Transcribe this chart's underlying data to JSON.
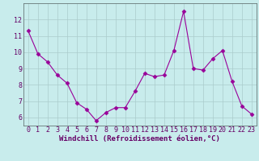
{
  "x": [
    0,
    1,
    2,
    3,
    4,
    5,
    6,
    7,
    8,
    9,
    10,
    11,
    12,
    13,
    14,
    15,
    16,
    17,
    18,
    19,
    20,
    21,
    22,
    23
  ],
  "y": [
    11.3,
    9.9,
    9.4,
    8.6,
    8.1,
    6.9,
    6.5,
    5.8,
    6.3,
    6.6,
    6.6,
    7.6,
    8.7,
    8.5,
    8.6,
    10.1,
    12.5,
    9.0,
    8.9,
    9.6,
    10.1,
    8.2,
    6.7,
    6.2
  ],
  "line_color": "#990099",
  "marker": "D",
  "markersize": 2.5,
  "linewidth": 0.8,
  "bg_color": "#c8ecec",
  "grid_color": "#aacccc",
  "xlabel": "Windchill (Refroidissement éolien,°C)",
  "xlabel_color": "#660066",
  "xlabel_fontsize": 6.5,
  "tick_color": "#660066",
  "tick_fontsize": 6,
  "ytick_values": [
    6,
    7,
    8,
    9,
    10,
    11,
    12
  ],
  "xtick_values": [
    0,
    1,
    2,
    3,
    4,
    5,
    6,
    7,
    8,
    9,
    10,
    11,
    12,
    13,
    14,
    15,
    16,
    17,
    18,
    19,
    20,
    21,
    22,
    23
  ],
  "ylim": [
    5.5,
    13.0
  ],
  "xlim": [
    -0.5,
    23.5
  ],
  "spine_color": "#667777"
}
